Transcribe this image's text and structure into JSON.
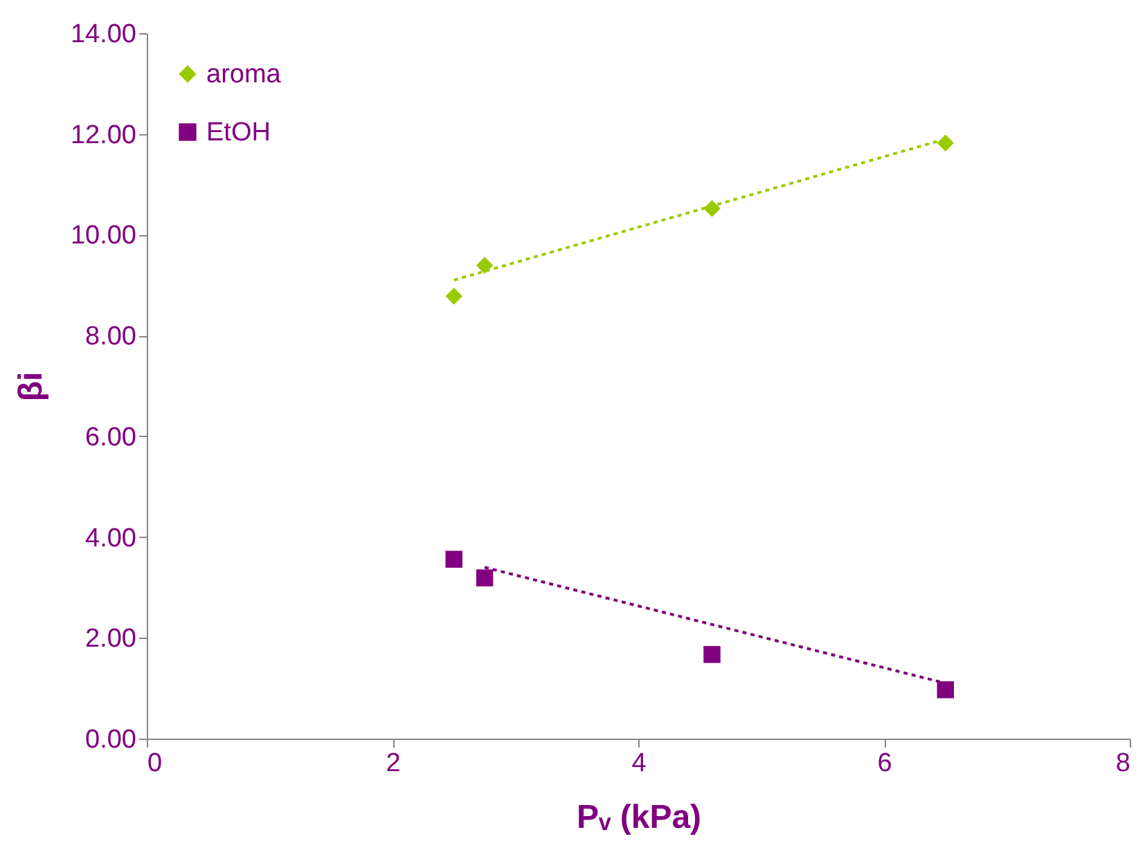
{
  "chart_data": {
    "type": "scatter",
    "xlabel": "Pᵥ (kPa)",
    "ylabel": "βi",
    "xlim": [
      0,
      8
    ],
    "xticks": [
      0,
      2,
      4,
      6,
      8
    ],
    "ylim": [
      0,
      14
    ],
    "yticks": [
      {
        "value": 0,
        "label": "0.00"
      },
      {
        "value": 2,
        "label": "2.00"
      },
      {
        "value": 4,
        "label": "4.00"
      },
      {
        "value": 6,
        "label": "6.00"
      },
      {
        "value": 8,
        "label": "8.00"
      },
      {
        "value": 10,
        "label": "10.00"
      },
      {
        "value": 12,
        "label": "12.00"
      },
      {
        "value": 14,
        "label": "14.00"
      }
    ],
    "grid": false,
    "legend": "top left",
    "series": [
      {
        "name": "aroma",
        "marker": "diamond",
        "color": "#99cc00",
        "x": [
          2.5,
          2.75,
          4.6,
          6.5
        ],
        "values": [
          8.78,
          9.39,
          10.52,
          11.82
        ]
      },
      {
        "name": "EtOH",
        "marker": "square",
        "color": "#800080",
        "x": [
          2.5,
          2.75,
          4.6,
          6.5
        ],
        "values": [
          3.56,
          3.19,
          1.67,
          0.97
        ]
      },
      {
        "type": "line",
        "line_style": "dotted",
        "color": "#99cc00",
        "x": [
          2.5,
          6.5
        ],
        "values": [
          9.1,
          11.9
        ]
      },
      {
        "type": "line",
        "line_style": "dotted",
        "color": "#800080",
        "x": [
          2.75,
          6.5
        ],
        "values": [
          3.4,
          1.1
        ]
      }
    ]
  }
}
